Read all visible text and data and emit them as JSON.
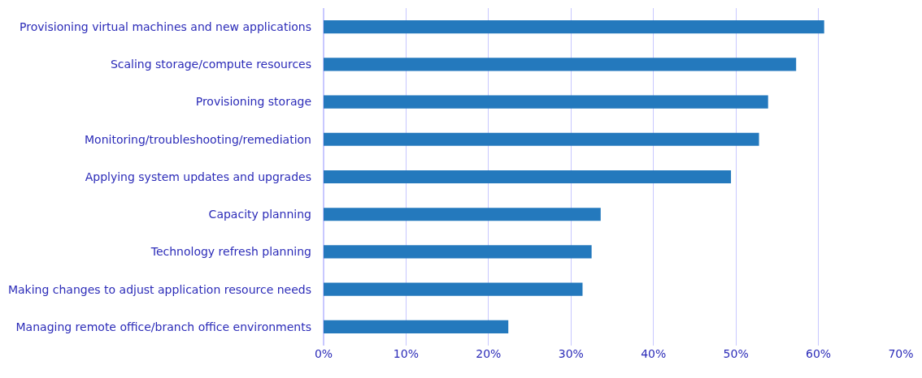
{
  "chart_data": {
    "type": "bar",
    "orientation": "horizontal",
    "categories": [
      "Provisioning virtual machines and new applications",
      "Scaling storage/compute resources",
      "Provisioning storage",
      "Monitoring/troubleshooting/remediation",
      "Applying system updates and upgrades",
      "Capacity planning",
      "Technology refresh planning",
      "Making changes to adjust application resource needs",
      "Managing remote office/branch office environments"
    ],
    "values": [
      60.7,
      57.3,
      53.9,
      52.8,
      49.4,
      33.6,
      32.5,
      31.4,
      22.4
    ],
    "color": "#2479bd",
    "xlim": [
      0,
      70
    ],
    "xticks": [
      {
        "value": 0,
        "label": "0%"
      },
      {
        "value": 10,
        "label": "10%"
      },
      {
        "value": 20,
        "label": "20%"
      },
      {
        "value": 30,
        "label": "30%"
      },
      {
        "value": 40,
        "label": "40%"
      },
      {
        "value": 50,
        "label": "50%"
      },
      {
        "value": 60,
        "label": "60%"
      },
      {
        "value": 70,
        "label": "70%"
      }
    ],
    "grid": "x",
    "legend": false
  }
}
